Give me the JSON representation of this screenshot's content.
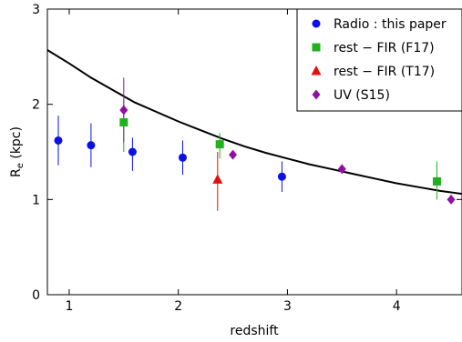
{
  "chart_data": {
    "type": "scatter",
    "xlabel": "redshift",
    "ylabel": "R",
    "ylabel_sub": "e",
    "ylabel_unit": " (kpc)",
    "xlim": [
      0.8,
      4.6
    ],
    "ylim": [
      0,
      3
    ],
    "xticks": [
      1,
      2,
      3,
      4
    ],
    "yticks": [
      0,
      1,
      2,
      3
    ],
    "grid": false,
    "legend_position": "top-right",
    "series": [
      {
        "name": "Radio :  this paper",
        "marker": "circle",
        "color": "#0a10e6",
        "points": [
          {
            "x": 0.9,
            "y": 1.62,
            "lo": 1.36,
            "hi": 1.88
          },
          {
            "x": 1.2,
            "y": 1.57,
            "lo": 1.34,
            "hi": 1.8
          },
          {
            "x": 1.58,
            "y": 1.5,
            "lo": 1.3,
            "hi": 1.65
          },
          {
            "x": 2.04,
            "y": 1.44,
            "lo": 1.26,
            "hi": 1.62
          },
          {
            "x": 2.95,
            "y": 1.24,
            "lo": 1.08,
            "hi": 1.4
          }
        ]
      },
      {
        "name": "rest − FIR (F17)",
        "marker": "square",
        "color": "#20b020",
        "points": [
          {
            "x": 1.5,
            "y": 1.81,
            "lo": 1.5,
            "hi": 2.05
          },
          {
            "x": 2.38,
            "y": 1.58,
            "lo": 1.43,
            "hi": 1.7
          },
          {
            "x": 4.37,
            "y": 1.19,
            "lo": 1.0,
            "hi": 1.4
          }
        ]
      },
      {
        "name": "rest − FIR (T17)",
        "marker": "triangle",
        "color": "#e01010",
        "points": [
          {
            "x": 2.36,
            "y": 1.21,
            "lo": 0.88,
            "hi": 1.5
          }
        ]
      },
      {
        "name": "UV (S15)",
        "marker": "diamond",
        "color": "#9010a0",
        "points": [
          {
            "x": 1.5,
            "y": 1.94,
            "lo": 1.6,
            "hi": 2.28
          },
          {
            "x": 2.5,
            "y": 1.47,
            "lo": 1.47,
            "hi": 1.47
          },
          {
            "x": 3.5,
            "y": 1.32,
            "lo": 1.32,
            "hi": 1.32
          },
          {
            "x": 4.5,
            "y": 1.0,
            "lo": 1.0,
            "hi": 1.0
          }
        ]
      }
    ],
    "curve": {
      "color": "#000000",
      "points": [
        [
          0.8,
          2.57
        ],
        [
          1.0,
          2.43
        ],
        [
          1.2,
          2.28
        ],
        [
          1.4,
          2.15
        ],
        [
          1.6,
          2.02
        ],
        [
          1.8,
          1.92
        ],
        [
          2.0,
          1.82
        ],
        [
          2.2,
          1.73
        ],
        [
          2.4,
          1.64
        ],
        [
          2.6,
          1.56
        ],
        [
          2.8,
          1.49
        ],
        [
          3.0,
          1.43
        ],
        [
          3.2,
          1.37
        ],
        [
          3.4,
          1.32
        ],
        [
          3.6,
          1.27
        ],
        [
          3.8,
          1.22
        ],
        [
          4.0,
          1.17
        ],
        [
          4.2,
          1.13
        ],
        [
          4.4,
          1.09
        ],
        [
          4.6,
          1.06
        ]
      ]
    }
  }
}
